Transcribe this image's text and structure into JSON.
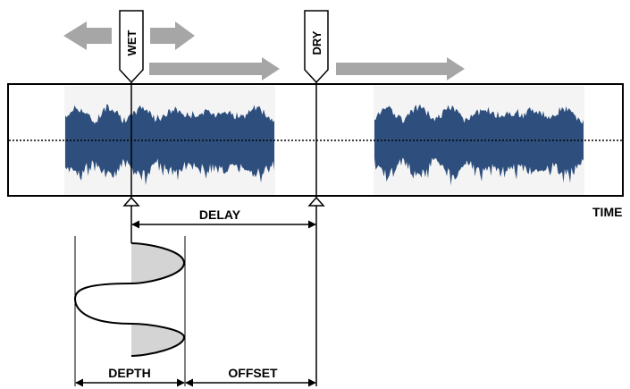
{
  "labels": {
    "wet": "WET",
    "dry": "DRY",
    "delay": "DELAY",
    "time": "TIME",
    "depth": "DEPTH",
    "offset": "OFFSET"
  },
  "colors": {
    "waveform": "#2e4f7d",
    "arrow": "#a6a6a6",
    "lfo_fill": "#d4d4d4",
    "clip_bg": "#f4f4f4"
  }
}
